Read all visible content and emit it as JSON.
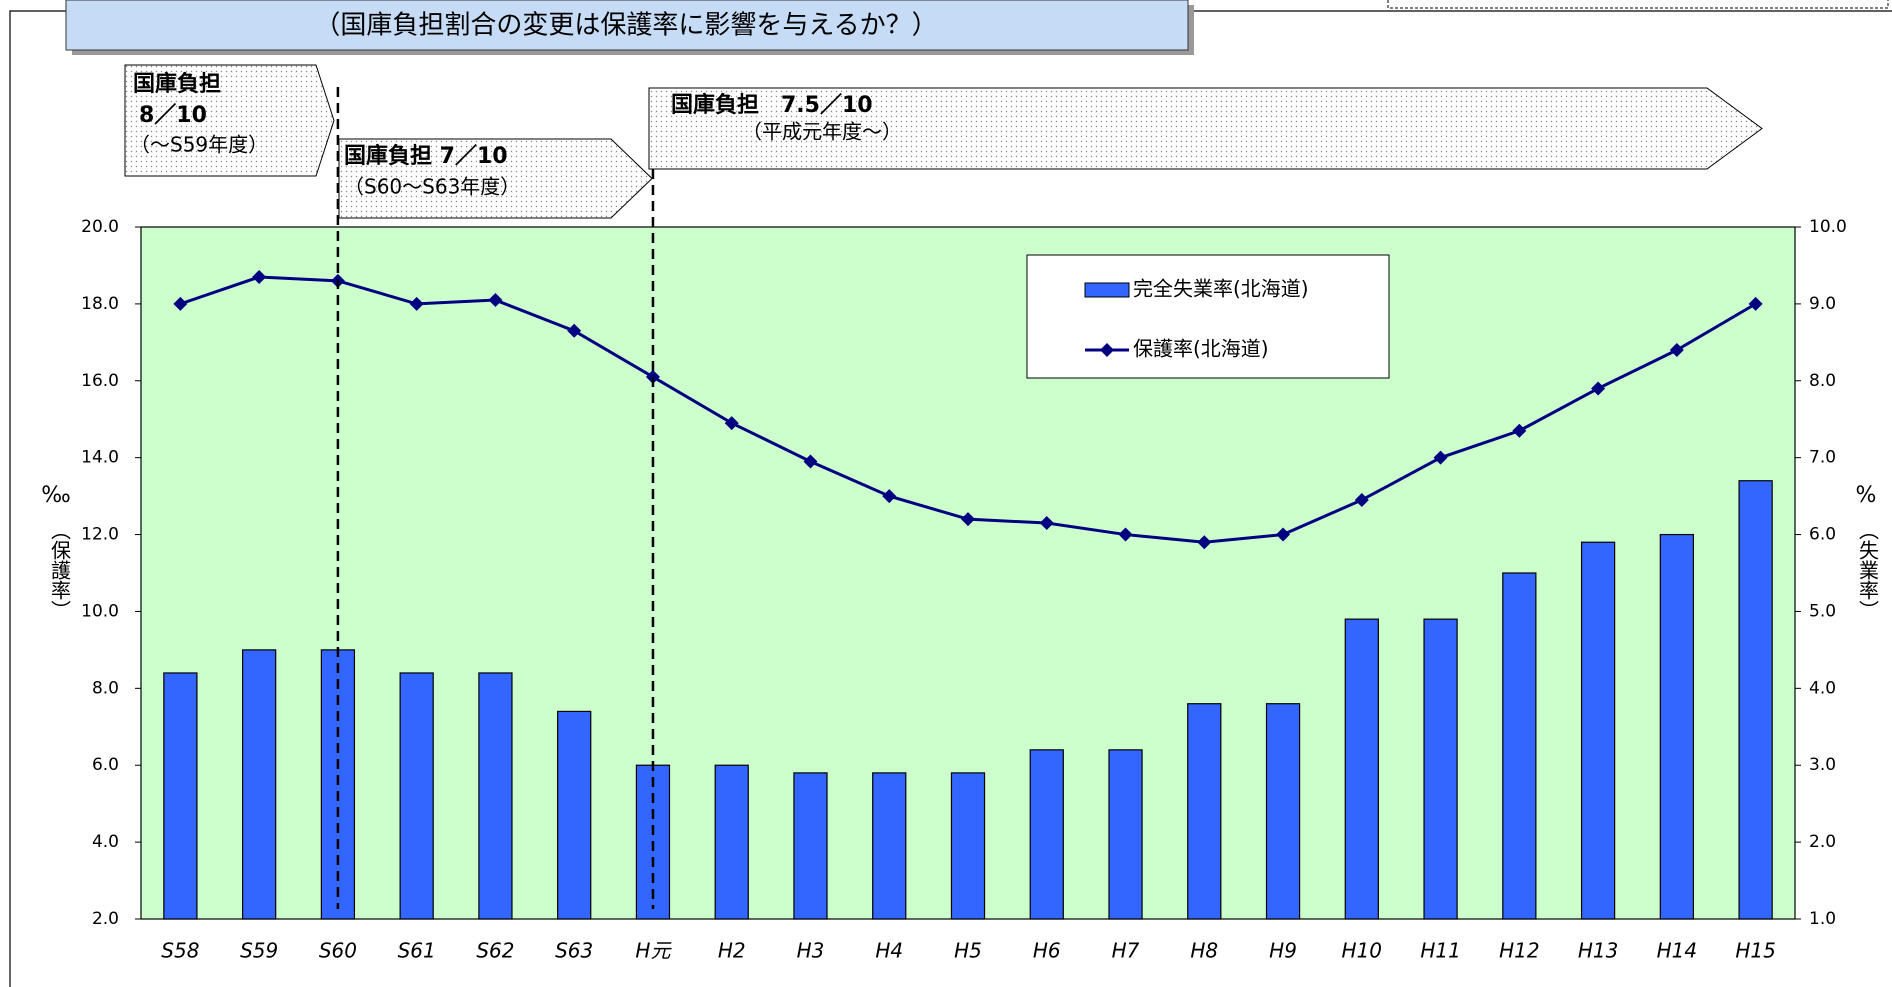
{
  "chart_data": {
    "type": "bar_line",
    "title": "（国庫負担割合の変更は保護率に影響を与えるか？）",
    "categories": [
      "S58",
      "S59",
      "S60",
      "S61",
      "S62",
      "S63",
      "H元",
      "H2",
      "H3",
      "H4",
      "H5",
      "H6",
      "H7",
      "H8",
      "H9",
      "H10",
      "H11",
      "H12",
      "H13",
      "H14",
      "H15"
    ],
    "series": [
      {
        "name": "完全失業率(北海道)",
        "type": "bar",
        "axis": "y2",
        "color": "#3366ff",
        "values": [
          4.2,
          4.5,
          4.5,
          4.2,
          4.2,
          3.7,
          3.0,
          3.0,
          2.9,
          2.9,
          2.9,
          3.2,
          3.2,
          3.8,
          3.8,
          4.9,
          4.9,
          5.5,
          5.9,
          6.0,
          6.7
        ]
      },
      {
        "name": "保護率(北海道)",
        "type": "line",
        "axis": "y",
        "color": "#000080",
        "values": [
          18.0,
          18.7,
          18.6,
          18.0,
          18.1,
          17.3,
          16.1,
          14.9,
          13.9,
          13.0,
          12.4,
          12.3,
          12.0,
          11.8,
          12.0,
          12.9,
          14.0,
          14.7,
          15.8,
          16.8,
          18.0
        ]
      }
    ],
    "ylim": [
      2.0,
      20.0
    ],
    "yticks": [
      {
        "value": 2,
        "label": "2.0"
      },
      {
        "value": 4,
        "label": "4.0"
      },
      {
        "value": 6,
        "label": "6.0"
      },
      {
        "value": 8,
        "label": "8.0"
      },
      {
        "value": 10,
        "label": "10.0"
      },
      {
        "value": 12,
        "label": "12.0"
      },
      {
        "value": 14,
        "label": "14.0"
      },
      {
        "value": 16,
        "label": "16.0"
      },
      {
        "value": 18,
        "label": "18.0"
      },
      {
        "value": 20,
        "label": "20.0"
      }
    ],
    "y2lim": [
      1.0,
      10.0
    ],
    "y2ticks": [
      {
        "value": 1,
        "label": "1.0"
      },
      {
        "value": 2,
        "label": "2.0"
      },
      {
        "value": 3,
        "label": "3.0"
      },
      {
        "value": 4,
        "label": "4.0"
      },
      {
        "value": 5,
        "label": "5.0"
      },
      {
        "value": 6,
        "label": "6.0"
      },
      {
        "value": 7,
        "label": "7.0"
      },
      {
        "value": 8,
        "label": "8.0"
      },
      {
        "value": 9,
        "label": "9.0"
      },
      {
        "value": 10,
        "label": "10.0"
      }
    ],
    "y_unit": "‰",
    "y_label": "（保護率）",
    "y2_unit": "%",
    "y2_label": "（失業率）",
    "annotations": [
      {
        "lines": [
          "国庫負担",
          "8／10",
          "（～S59年度）"
        ]
      },
      {
        "lines": [
          "国庫負担 7／10",
          "（S60～S63年度）"
        ]
      },
      {
        "lines": [
          "国庫負担　7.5／10",
          "（平成元年度～）"
        ]
      }
    ]
  }
}
